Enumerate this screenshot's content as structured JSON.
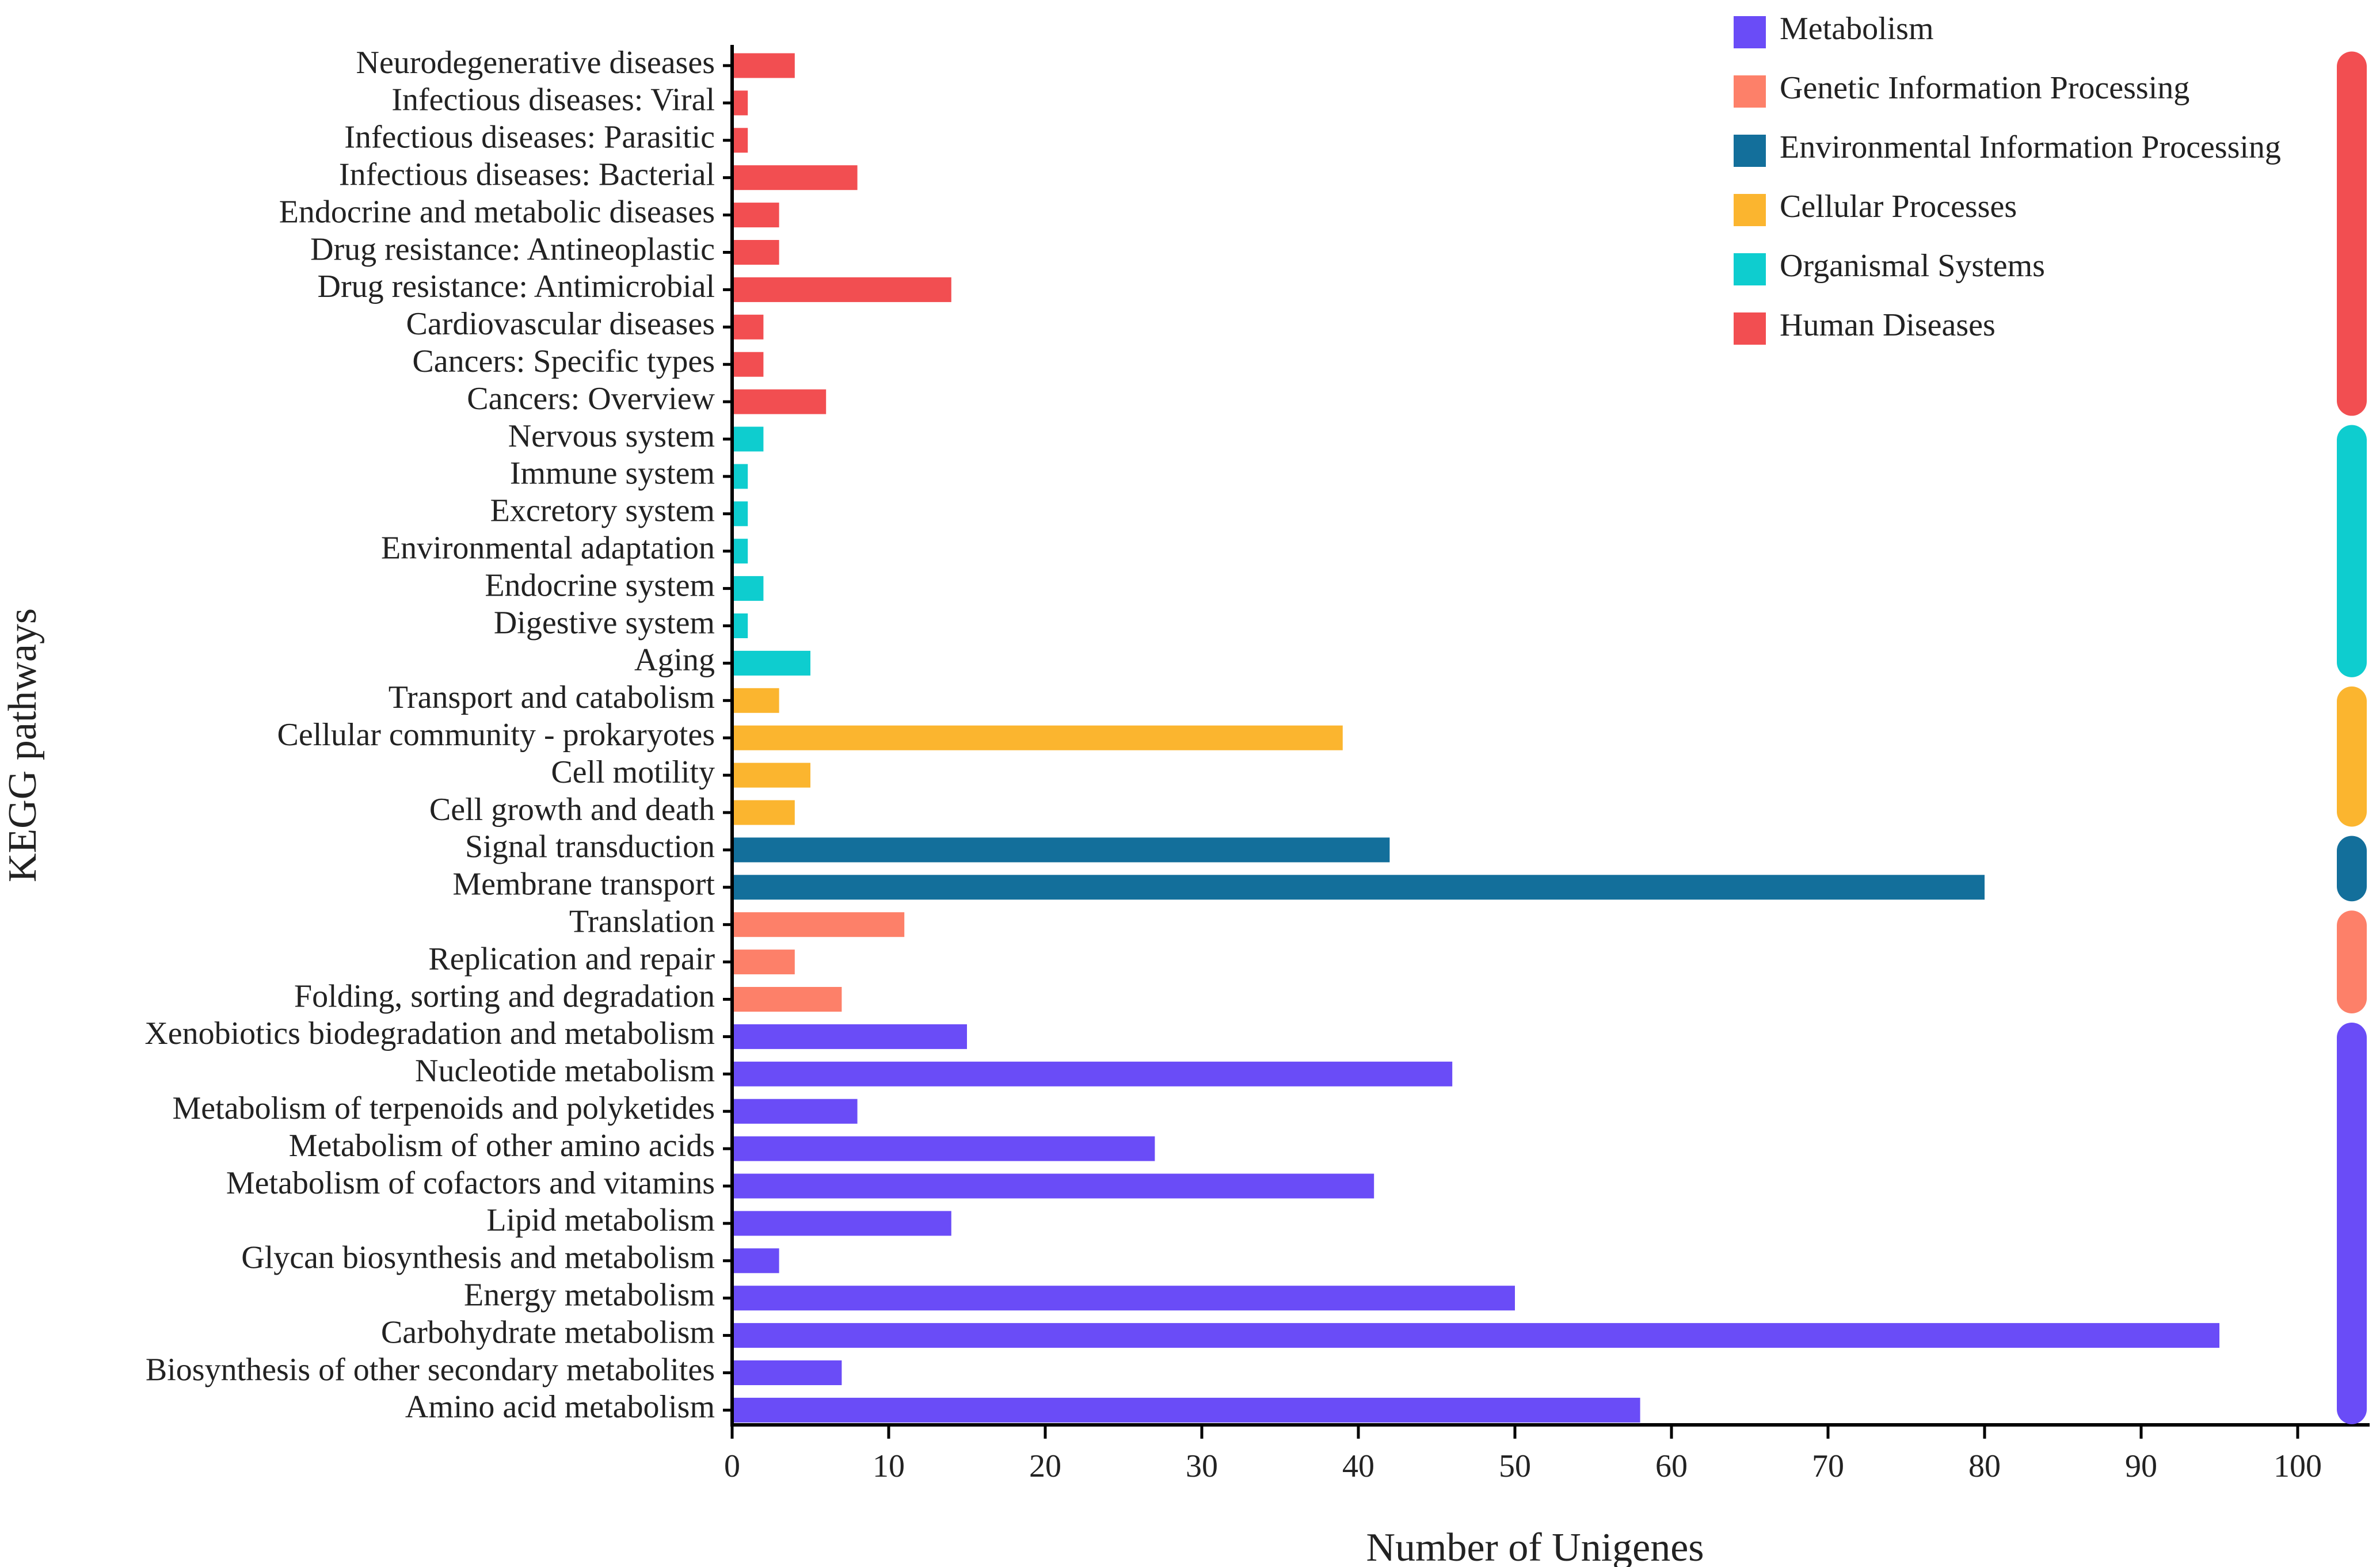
{
  "chart_data": {
    "type": "bar",
    "orientation": "horizontal",
    "title": "",
    "xlabel": "Number of Unigenes",
    "ylabel": "KEGG pathways",
    "xlim": [
      0,
      100
    ],
    "xticks": [
      "0",
      "10",
      "20",
      "30",
      "40",
      "50",
      "60",
      "70",
      "80",
      "90",
      "100"
    ],
    "grid": false,
    "legend_position": "top-right",
    "groups": [
      {
        "name": "Metabolism",
        "color": "#6a4cf7"
      },
      {
        "name": "Genetic Information Processing",
        "color": "#fd8069"
      },
      {
        "name": "Environmental Information Processing",
        "color": "#136f9b"
      },
      {
        "name": "Cellular Processes",
        "color": "#fbb52f"
      },
      {
        "name": "Organismal Systems",
        "color": "#0ecdcf"
      },
      {
        "name": "Human Diseases",
        "color": "#f24e51"
      }
    ],
    "categories": [
      {
        "label": "Neurodegenerative diseases",
        "value": 4,
        "group": "Human Diseases"
      },
      {
        "label": "Infectious diseases: Viral",
        "value": 1,
        "group": "Human Diseases"
      },
      {
        "label": "Infectious diseases: Parasitic",
        "value": 1,
        "group": "Human Diseases"
      },
      {
        "label": "Infectious diseases: Bacterial",
        "value": 8,
        "group": "Human Diseases"
      },
      {
        "label": "Endocrine and metabolic diseases",
        "value": 3,
        "group": "Human Diseases"
      },
      {
        "label": "Drug resistance: Antineoplastic",
        "value": 3,
        "group": "Human Diseases"
      },
      {
        "label": "Drug resistance: Antimicrobial",
        "value": 14,
        "group": "Human Diseases"
      },
      {
        "label": "Cardiovascular diseases",
        "value": 2,
        "group": "Human Diseases"
      },
      {
        "label": "Cancers: Specific types",
        "value": 2,
        "group": "Human Diseases"
      },
      {
        "label": "Cancers: Overview",
        "value": 6,
        "group": "Human Diseases"
      },
      {
        "label": "Nervous system",
        "value": 2,
        "group": "Organismal Systems"
      },
      {
        "label": "Immune system",
        "value": 1,
        "group": "Organismal Systems"
      },
      {
        "label": "Excretory system",
        "value": 1,
        "group": "Organismal Systems"
      },
      {
        "label": "Environmental adaptation",
        "value": 1,
        "group": "Organismal Systems"
      },
      {
        "label": "Endocrine system",
        "value": 2,
        "group": "Organismal Systems"
      },
      {
        "label": "Digestive system",
        "value": 1,
        "group": "Organismal Systems"
      },
      {
        "label": "Aging",
        "value": 5,
        "group": "Organismal Systems"
      },
      {
        "label": "Transport and catabolism",
        "value": 3,
        "group": "Cellular Processes"
      },
      {
        "label": "Cellular community - prokaryotes",
        "value": 39,
        "group": "Cellular Processes"
      },
      {
        "label": "Cell motility",
        "value": 5,
        "group": "Cellular Processes"
      },
      {
        "label": "Cell growth and death",
        "value": 4,
        "group": "Cellular Processes"
      },
      {
        "label": "Signal transduction",
        "value": 42,
        "group": "Environmental Information Processing"
      },
      {
        "label": "Membrane transport",
        "value": 80,
        "group": "Environmental Information Processing"
      },
      {
        "label": "Translation",
        "value": 11,
        "group": "Genetic Information Processing"
      },
      {
        "label": "Replication and repair",
        "value": 4,
        "group": "Genetic Information Processing"
      },
      {
        "label": "Folding, sorting and degradation",
        "value": 7,
        "group": "Genetic Information Processing"
      },
      {
        "label": "Xenobiotics biodegradation and metabolism",
        "value": 15,
        "group": "Metabolism"
      },
      {
        "label": "Nucleotide metabolism",
        "value": 46,
        "group": "Metabolism"
      },
      {
        "label": "Metabolism of terpenoids and polyketides",
        "value": 8,
        "group": "Metabolism"
      },
      {
        "label": "Metabolism of other amino acids",
        "value": 27,
        "group": "Metabolism"
      },
      {
        "label": "Metabolism of cofactors and vitamins",
        "value": 41,
        "group": "Metabolism"
      },
      {
        "label": "Lipid metabolism",
        "value": 14,
        "group": "Metabolism"
      },
      {
        "label": "Glycan biosynthesis and metabolism",
        "value": 3,
        "group": "Metabolism"
      },
      {
        "label": "Energy metabolism",
        "value": 50,
        "group": "Metabolism"
      },
      {
        "label": "Carbohydrate metabolism",
        "value": 95,
        "group": "Metabolism"
      },
      {
        "label": "Biosynthesis of other secondary metabolites",
        "value": 7,
        "group": "Metabolism"
      },
      {
        "label": "Amino acid metabolism",
        "value": 58,
        "group": "Metabolism"
      }
    ]
  }
}
